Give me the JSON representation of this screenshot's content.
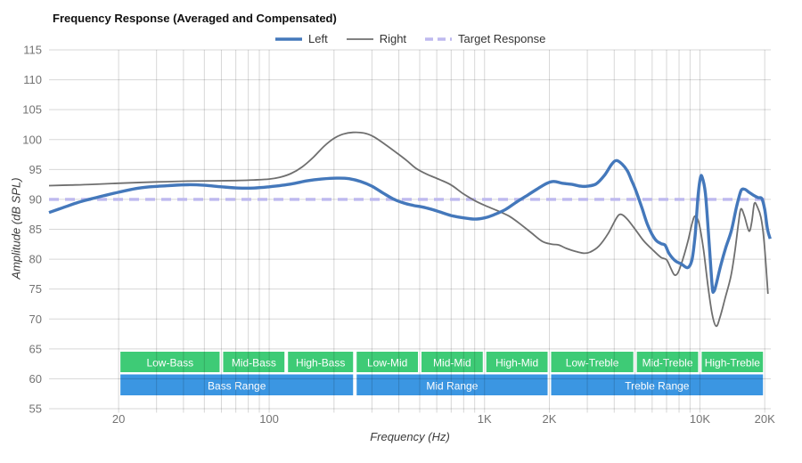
{
  "title": "Frequency Response (Averaged and Compensated)",
  "legend": [
    {
      "label": "Left",
      "color": "#4478bb",
      "dash": "",
      "width": 3.4
    },
    {
      "label": "Right",
      "color": "#6f6f6f",
      "dash": "",
      "width": 1.8
    },
    {
      "label": "Target Response",
      "color": "#beb9ef",
      "dash": "9 5",
      "width": 3.4
    }
  ],
  "axes": {
    "x_label": "Frequency (Hz)",
    "y_label": "Amplitude (dB SPL)",
    "y_ticks": [
      115,
      110,
      105,
      100,
      95,
      90,
      85,
      80,
      75,
      70,
      65,
      60,
      55
    ],
    "x_ticks": [
      {
        "f": 20,
        "label": "20"
      },
      {
        "f": 100,
        "label": "100"
      },
      {
        "f": 1000,
        "label": "1K"
      },
      {
        "f": 2000,
        "label": "2K"
      },
      {
        "f": 10000,
        "label": "10K"
      },
      {
        "f": 20000,
        "label": "20K"
      }
    ],
    "x_gridlines": [
      20,
      30,
      40,
      50,
      60,
      70,
      80,
      90,
      100,
      200,
      300,
      400,
      500,
      600,
      700,
      800,
      900,
      1000,
      2000,
      3000,
      4000,
      5000,
      6000,
      7000,
      8000,
      9000,
      10000,
      20000
    ]
  },
  "bands": {
    "sub_color": "#3ecb76",
    "range_color": "#3b96e2",
    "text_color": "#ffffff",
    "sub": [
      {
        "label": "Low-Bass",
        "f1": 20,
        "f2": 60
      },
      {
        "label": "Mid-Bass",
        "f1": 60,
        "f2": 120
      },
      {
        "label": "High-Bass",
        "f1": 120,
        "f2": 250
      },
      {
        "label": "Low-Mid",
        "f1": 250,
        "f2": 500
      },
      {
        "label": "Mid-Mid",
        "f1": 500,
        "f2": 1000
      },
      {
        "label": "High-Mid",
        "f1": 1000,
        "f2": 2000
      },
      {
        "label": "Low-Treble",
        "f1": 2000,
        "f2": 5000
      },
      {
        "label": "Mid-Treble",
        "f1": 5000,
        "f2": 10000
      },
      {
        "label": "High-Treble",
        "f1": 10000,
        "f2": 20000
      }
    ],
    "ranges": [
      {
        "label": "Bass Range",
        "f1": 20,
        "f2": 250
      },
      {
        "label": "Mid Range",
        "f1": 250,
        "f2": 2000
      },
      {
        "label": "Treble Range",
        "f1": 2000,
        "f2": 20000
      }
    ]
  },
  "chart_data": {
    "type": "line",
    "title": "Frequency Response (Averaged and Compensated)",
    "xlabel": "Frequency (Hz)",
    "ylabel": "Amplitude (dB SPL)",
    "x_scale": "log",
    "xlim": [
      9.5,
      21340
    ],
    "ylim": [
      55,
      115
    ],
    "grid": true,
    "legend_position": "top",
    "series": [
      {
        "name": "Left",
        "color": "#4478bb",
        "width": 3.4,
        "dash": "",
        "points": [
          [
            9.5,
            87.8
          ],
          [
            11,
            88.6
          ],
          [
            13,
            89.5
          ],
          [
            15,
            90.1
          ],
          [
            17,
            90.6
          ],
          [
            20,
            91.2
          ],
          [
            24,
            91.8
          ],
          [
            28,
            92.1
          ],
          [
            34,
            92.3
          ],
          [
            42,
            92.45
          ],
          [
            50,
            92.35
          ],
          [
            60,
            92.1
          ],
          [
            72,
            91.9
          ],
          [
            85,
            91.9
          ],
          [
            100,
            92.1
          ],
          [
            115,
            92.35
          ],
          [
            132,
            92.7
          ],
          [
            150,
            93.1
          ],
          [
            175,
            93.4
          ],
          [
            205,
            93.55
          ],
          [
            235,
            93.45
          ],
          [
            265,
            93.0
          ],
          [
            300,
            92.2
          ],
          [
            340,
            91.0
          ],
          [
            380,
            90.0
          ],
          [
            420,
            89.4
          ],
          [
            465,
            89.0
          ],
          [
            510,
            88.75
          ],
          [
            560,
            88.4
          ],
          [
            620,
            87.9
          ],
          [
            700,
            87.3
          ],
          [
            800,
            86.9
          ],
          [
            900,
            86.7
          ],
          [
            1000,
            86.9
          ],
          [
            1100,
            87.4
          ],
          [
            1250,
            88.3
          ],
          [
            1400,
            89.5
          ],
          [
            1550,
            90.5
          ],
          [
            1750,
            91.7
          ],
          [
            1950,
            92.7
          ],
          [
            2100,
            93.0
          ],
          [
            2300,
            92.7
          ],
          [
            2550,
            92.5
          ],
          [
            2800,
            92.2
          ],
          [
            3000,
            92.2
          ],
          [
            3300,
            92.6
          ],
          [
            3600,
            94.0
          ],
          [
            3900,
            95.9
          ],
          [
            4100,
            96.5
          ],
          [
            4350,
            95.9
          ],
          [
            4600,
            94.8
          ],
          [
            4800,
            93.3
          ],
          [
            5050,
            91.4
          ],
          [
            5400,
            88.4
          ],
          [
            5750,
            85.5
          ],
          [
            6200,
            83.3
          ],
          [
            6600,
            82.6
          ],
          [
            6900,
            82.3
          ],
          [
            7200,
            80.9
          ],
          [
            7700,
            79.7
          ],
          [
            8200,
            79.2
          ],
          [
            8800,
            78.6
          ],
          [
            9200,
            80.0
          ],
          [
            9500,
            84.0
          ],
          [
            9800,
            90.5
          ],
          [
            10050,
            93.6
          ],
          [
            10250,
            93.7
          ],
          [
            10600,
            91.0
          ],
          [
            11000,
            83.5
          ],
          [
            11400,
            75.5
          ],
          [
            11600,
            74.6
          ],
          [
            11900,
            75.8
          ],
          [
            12500,
            79.0
          ],
          [
            13200,
            82.0
          ],
          [
            14000,
            84.8
          ],
          [
            14800,
            88.8
          ],
          [
            15500,
            91.4
          ],
          [
            16100,
            91.7
          ],
          [
            16900,
            91.2
          ],
          [
            17700,
            90.7
          ],
          [
            18600,
            90.3
          ],
          [
            19400,
            90.1
          ],
          [
            20000,
            88.3
          ],
          [
            20600,
            85.0
          ],
          [
            21200,
            83.4
          ]
        ]
      },
      {
        "name": "Right",
        "color": "#6f6f6f",
        "width": 1.8,
        "dash": "",
        "points": [
          [
            9.5,
            92.3
          ],
          [
            12,
            92.4
          ],
          [
            15,
            92.5
          ],
          [
            20,
            92.7
          ],
          [
            26,
            92.85
          ],
          [
            33,
            92.95
          ],
          [
            42,
            93.05
          ],
          [
            55,
            93.1
          ],
          [
            70,
            93.15
          ],
          [
            85,
            93.25
          ],
          [
            100,
            93.4
          ],
          [
            112,
            93.7
          ],
          [
            126,
            94.3
          ],
          [
            142,
            95.4
          ],
          [
            160,
            97.0
          ],
          [
            180,
            98.9
          ],
          [
            200,
            100.2
          ],
          [
            220,
            100.9
          ],
          [
            245,
            101.2
          ],
          [
            275,
            101.1
          ],
          [
            305,
            100.5
          ],
          [
            345,
            99.2
          ],
          [
            390,
            97.8
          ],
          [
            435,
            96.5
          ],
          [
            480,
            95.2
          ],
          [
            540,
            94.2
          ],
          [
            620,
            93.3
          ],
          [
            700,
            92.4
          ],
          [
            800,
            90.9
          ],
          [
            900,
            89.8
          ],
          [
            1000,
            89.0
          ],
          [
            1150,
            88.1
          ],
          [
            1300,
            87.2
          ],
          [
            1450,
            86.0
          ],
          [
            1650,
            84.4
          ],
          [
            1850,
            83.0
          ],
          [
            2050,
            82.5
          ],
          [
            2200,
            82.4
          ],
          [
            2400,
            81.8
          ],
          [
            2650,
            81.3
          ],
          [
            2900,
            81.0
          ],
          [
            3100,
            81.2
          ],
          [
            3400,
            82.2
          ],
          [
            3750,
            84.3
          ],
          [
            4100,
            86.9
          ],
          [
            4300,
            87.5
          ],
          [
            4600,
            86.7
          ],
          [
            5050,
            84.8
          ],
          [
            5500,
            83.0
          ],
          [
            6100,
            81.4
          ],
          [
            6600,
            80.3
          ],
          [
            7000,
            79.9
          ],
          [
            7300,
            78.6
          ],
          [
            7600,
            77.4
          ],
          [
            7900,
            77.7
          ],
          [
            8300,
            79.8
          ],
          [
            8800,
            83.0
          ],
          [
            9200,
            86.0
          ],
          [
            9500,
            87.2
          ],
          [
            9900,
            86.0
          ],
          [
            10400,
            81.5
          ],
          [
            10900,
            75.5
          ],
          [
            11400,
            70.8
          ],
          [
            11900,
            68.8
          ],
          [
            12400,
            70.3
          ],
          [
            13100,
            73.5
          ],
          [
            13900,
            77.0
          ],
          [
            14500,
            81.0
          ],
          [
            15100,
            86.0
          ],
          [
            15500,
            88.4
          ],
          [
            16100,
            87.2
          ],
          [
            16900,
            84.7
          ],
          [
            17400,
            86.2
          ],
          [
            17900,
            89.3
          ],
          [
            18500,
            88.7
          ],
          [
            19200,
            87.0
          ],
          [
            19800,
            83.5
          ],
          [
            20300,
            78.5
          ],
          [
            20700,
            74.2
          ]
        ]
      },
      {
        "name": "Target Response",
        "color": "#beb9ef",
        "width": 3.4,
        "dash": "11 7",
        "points": [
          [
            9.5,
            90
          ],
          [
            21340,
            90
          ]
        ]
      }
    ]
  }
}
